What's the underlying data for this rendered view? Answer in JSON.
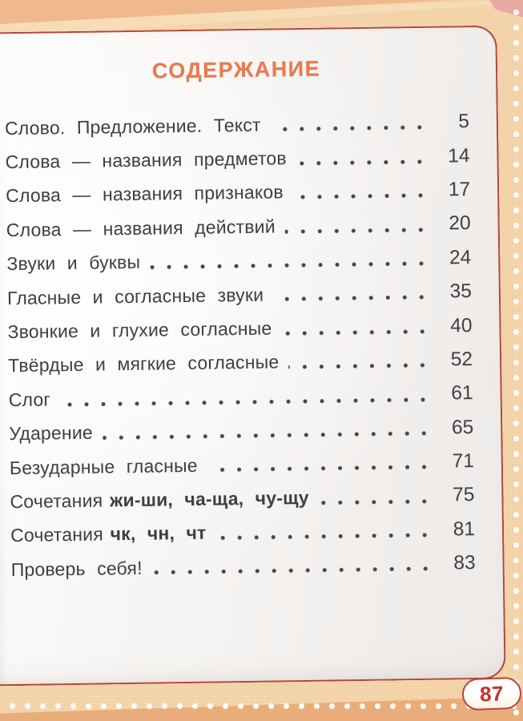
{
  "title": "СОДЕРЖАНИЕ",
  "page_number": "87",
  "toc": {
    "rows": [
      {
        "label": "Слово.  Предложение.  Текст",
        "page": "5"
      },
      {
        "label": "Слова  —  названия  предметов",
        "page": "14"
      },
      {
        "label": "Слова  —  названия  признаков",
        "page": "17"
      },
      {
        "label": "Слова  —  названия  действий",
        "page": "20"
      },
      {
        "label": "Звуки  и  буквы",
        "page": "24"
      },
      {
        "label": "Гласные  и  согласные  звуки",
        "page": "35"
      },
      {
        "label": "Звонкие  и  глухие  согласные",
        "page": "40"
      },
      {
        "label": "Твёрдые  и  мягкие  согласные",
        "page": "52"
      },
      {
        "label": "Слог",
        "page": "61"
      },
      {
        "label": "Ударение",
        "page": "65"
      },
      {
        "label": "Безударные  гласные",
        "page": "71"
      },
      {
        "label": "Сочетания",
        "label_bold": "жи-ши,  ча-ща,  чу-щу",
        "page": "75"
      },
      {
        "label": "Сочетания",
        "label_bold": "чк,  чн,  чт",
        "page": "81"
      },
      {
        "label": "Проверь  себя!",
        "page": "83"
      }
    ]
  },
  "theme": {
    "accent_orange": "#e77a50",
    "page_border_red": "#b2453c",
    "badge_red": "#ca2f2f",
    "text_gray": "#3f3f42",
    "dot_gray": "#47474b",
    "margin_peach": "#f3d1a6",
    "band_salmon": "#efb88d",
    "band_cream": "#f7dcb8",
    "band_bottom_orange": "#e8ad7a",
    "corner_pink": "#eaa8a5",
    "page_white": "#fbfaf9"
  }
}
